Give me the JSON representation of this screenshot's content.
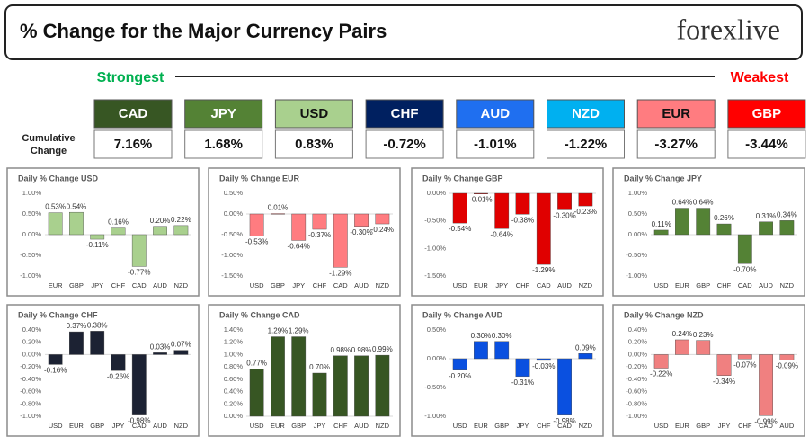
{
  "header": {
    "title": "% Change for the Major Currency Pairs",
    "logo": "forexlive"
  },
  "ranking": {
    "strongest": "Strongest",
    "weakest": "Weakest",
    "label": "Cumulative Change",
    "items": [
      {
        "name": "CAD",
        "change": "7.16%",
        "color": "#375623"
      },
      {
        "name": "JPY",
        "change": "1.68%",
        "color": "#548235"
      },
      {
        "name": "USD",
        "change": "0.83%",
        "color": "#a9d08e"
      },
      {
        "name": "CHF",
        "change": "-0.72%",
        "color": "#002060"
      },
      {
        "name": "AUD",
        "change": "-1.01%",
        "color": "#1f6ff0"
      },
      {
        "name": "NZD",
        "change": "-1.22%",
        "color": "#00b0f0"
      },
      {
        "name": "EUR",
        "change": "-3.27%",
        "color": "#ff7c80"
      },
      {
        "name": "GBP",
        "change": "-3.44%",
        "color": "#ff0000"
      }
    ]
  },
  "chart_data": [
    {
      "type": "bar",
      "title": "Daily % Change USD",
      "color": "#a9d08e",
      "categories": [
        "EUR",
        "GBP",
        "JPY",
        "CHF",
        "CAD",
        "AUD",
        "NZD"
      ],
      "values": [
        0.53,
        0.54,
        -0.11,
        0.16,
        -0.77,
        0.2,
        0.22
      ],
      "value_labels": [
        "0.53%",
        "0.54%",
        "-0.11%",
        "0.16%",
        "-0.77%",
        "0.20%",
        "0.22%"
      ],
      "ylim": [
        -1,
        1
      ],
      "yticks": [
        {
          "value": -1,
          "label": "-1.00%"
        },
        {
          "value": -0.5,
          "label": "-0.50%"
        },
        {
          "value": 0,
          "label": "0.00%"
        },
        {
          "value": 0.5,
          "label": "0.50%"
        },
        {
          "value": 1,
          "label": "1.00%"
        }
      ]
    },
    {
      "type": "bar",
      "title": "Daily % Change EUR",
      "color": "#ff7c80",
      "categories": [
        "USD",
        "GBP",
        "JPY",
        "CHF",
        "CAD",
        "AUD",
        "NZD"
      ],
      "values": [
        -0.53,
        0.01,
        -0.64,
        -0.37,
        -1.29,
        -0.3,
        -0.24
      ],
      "value_labels": [
        "-0.53%",
        "0.01%",
        "-0.64%",
        "-0.37%",
        "-1.29%",
        "-0.30%",
        "-0.24%"
      ],
      "ylim": [
        -1.5,
        0.5
      ],
      "yticks": [
        {
          "value": -1.5,
          "label": "-1.50%"
        },
        {
          "value": -1,
          "label": "-1.00%"
        },
        {
          "value": -0.5,
          "label": "-0.50%"
        },
        {
          "value": 0,
          "label": "0.00%"
        },
        {
          "value": 0.5,
          "label": "0.50%"
        }
      ]
    },
    {
      "type": "bar",
      "title": "Daily % Change GBP",
      "color": "#e00000",
      "categories": [
        "USD",
        "EUR",
        "JPY",
        "CHF",
        "CAD",
        "AUD",
        "NZD"
      ],
      "values": [
        -0.54,
        -0.01,
        -0.64,
        -0.38,
        -1.29,
        -0.3,
        -0.23
      ],
      "value_labels": [
        "-0.54%",
        "-0.01%",
        "-0.64%",
        "-0.38%",
        "-1.29%",
        "-0.30%",
        "-0.23%"
      ],
      "ylim": [
        -1.5,
        0
      ],
      "yticks": [
        {
          "value": -1.5,
          "label": "-1.50%"
        },
        {
          "value": -1,
          "label": "-1.00%"
        },
        {
          "value": -0.5,
          "label": "-0.50%"
        },
        {
          "value": 0,
          "label": "0.00%"
        }
      ]
    },
    {
      "type": "bar",
      "title": "Daily % Change JPY",
      "color": "#548235",
      "categories": [
        "USD",
        "EUR",
        "GBP",
        "CHF",
        "CAD",
        "AUD",
        "NZD"
      ],
      "values": [
        0.11,
        0.64,
        0.64,
        0.26,
        -0.7,
        0.31,
        0.34
      ],
      "value_labels": [
        "0.11%",
        "0.64%",
        "0.64%",
        "0.26%",
        "-0.70%",
        "0.31%",
        "0.34%"
      ],
      "ylim": [
        -1,
        1
      ],
      "yticks": [
        {
          "value": -1,
          "label": "-1.00%"
        },
        {
          "value": -0.5,
          "label": "-0.50%"
        },
        {
          "value": 0,
          "label": "0.00%"
        },
        {
          "value": 0.5,
          "label": "0.50%"
        },
        {
          "value": 1,
          "label": "1.00%"
        }
      ]
    },
    {
      "type": "bar",
      "title": "Daily % Change CHF",
      "color": "#1c2233",
      "categories": [
        "USD",
        "EUR",
        "GBP",
        "JPY",
        "CAD",
        "AUD",
        "NZD"
      ],
      "values": [
        -0.16,
        0.37,
        0.38,
        -0.26,
        -0.98,
        0.03,
        0.07
      ],
      "value_labels": [
        "-0.16%",
        "0.37%",
        "0.38%",
        "-0.26%",
        "-0.98%",
        "0.03%",
        "0.07%"
      ],
      "ylim": [
        -1,
        0.4
      ],
      "yticks": [
        {
          "value": -1,
          "label": "-1.00%"
        },
        {
          "value": -0.8,
          "label": "-0.80%"
        },
        {
          "value": -0.6,
          "label": "-0.60%"
        },
        {
          "value": -0.4,
          "label": "-0.40%"
        },
        {
          "value": -0.2,
          "label": "-0.20%"
        },
        {
          "value": 0,
          "label": "0.00%"
        },
        {
          "value": 0.2,
          "label": "0.20%"
        },
        {
          "value": 0.4,
          "label": "0.40%"
        }
      ]
    },
    {
      "type": "bar",
      "title": "Daily % Change CAD",
      "color": "#375623",
      "categories": [
        "USD",
        "EUR",
        "GBP",
        "JPY",
        "CHF",
        "AUD",
        "NZD"
      ],
      "values": [
        0.77,
        1.29,
        1.29,
        0.7,
        0.98,
        0.98,
        0.99
      ],
      "value_labels": [
        "0.77%",
        "1.29%",
        "1.29%",
        "0.70%",
        "0.98%",
        "0.98%",
        "0.99%"
      ],
      "ylim": [
        0,
        1.4
      ],
      "yticks": [
        {
          "value": 0,
          "label": "0.00%"
        },
        {
          "value": 0.2,
          "label": "0.20%"
        },
        {
          "value": 0.4,
          "label": "0.40%"
        },
        {
          "value": 0.6,
          "label": "0.60%"
        },
        {
          "value": 0.8,
          "label": "0.80%"
        },
        {
          "value": 1,
          "label": "1.00%"
        },
        {
          "value": 1.2,
          "label": "1.20%"
        },
        {
          "value": 1.4,
          "label": "1.40%"
        }
      ]
    },
    {
      "type": "bar",
      "title": "Daily % Change AUD",
      "color": "#0a50e0",
      "categories": [
        "USD",
        "EUR",
        "GBP",
        "JPY",
        "CHF",
        "CAD",
        "NZD"
      ],
      "values": [
        -0.2,
        0.3,
        0.3,
        -0.31,
        -0.03,
        -0.98,
        0.09
      ],
      "value_labels": [
        "-0.20%",
        "0.30%",
        "0.30%",
        "-0.31%",
        "-0.03%",
        "-0.98%",
        "0.09%"
      ],
      "ylim": [
        -1,
        0.5
      ],
      "yticks": [
        {
          "value": -1,
          "label": "-1.00%"
        },
        {
          "value": -0.5,
          "label": "-0.50%"
        },
        {
          "value": 0,
          "label": "0.00%"
        },
        {
          "value": 0.5,
          "label": "0.50%"
        }
      ]
    },
    {
      "type": "bar",
      "title": "Daily % Change NZD",
      "color": "#f08080",
      "categories": [
        "USD",
        "EUR",
        "GBP",
        "JPY",
        "CHF",
        "CAD",
        "AUD"
      ],
      "values": [
        -0.22,
        0.24,
        0.23,
        -0.34,
        -0.07,
        -0.99,
        -0.09
      ],
      "value_labels": [
        "-0.22%",
        "0.24%",
        "0.23%",
        "-0.34%",
        "-0.07%",
        "-0.99%",
        "-0.09%"
      ],
      "ylim": [
        -1,
        0.4
      ],
      "yticks": [
        {
          "value": -1,
          "label": "-1.00%"
        },
        {
          "value": -0.8,
          "label": "-0.80%"
        },
        {
          "value": -0.6,
          "label": "-0.60%"
        },
        {
          "value": -0.4,
          "label": "-0.40%"
        },
        {
          "value": -0.2,
          "label": "-0.20%"
        },
        {
          "value": 0,
          "label": "0.00%"
        },
        {
          "value": 0.2,
          "label": "0.20%"
        },
        {
          "value": 0.4,
          "label": "0.40%"
        }
      ]
    }
  ]
}
